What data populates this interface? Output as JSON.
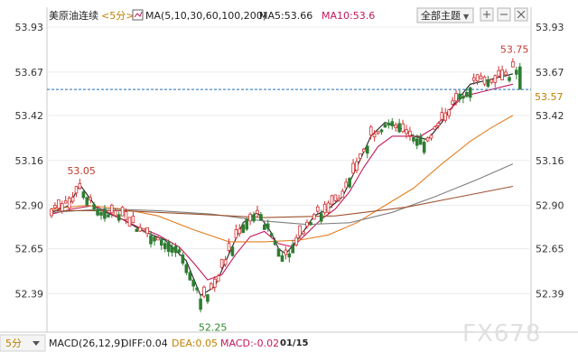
{
  "header": {
    "instrument": "美原油连续",
    "period": "<5分>",
    "ma_periods": "MA(5,10,30,60,100,200)",
    "ma5": "MA5:53.66",
    "ma10": "MA10:53.6",
    "menu_all": "全部主题",
    "menu_arrow": "▼"
  },
  "footer": {
    "period_select": "5分",
    "macd_params": "MACD(26,12,9)",
    "diff": "DIFF:0.04",
    "dea": "DEA:0.05",
    "macd": "MACD:-0.02",
    "date_label": "01/15",
    "watermark": "FX678"
  },
  "chart_data": {
    "type": "candlestick",
    "title": "美原油连续 <5分>",
    "y_ticks": [
      53.93,
      53.67,
      53.42,
      53.16,
      52.9,
      52.65,
      52.39
    ],
    "y_tick_labels": [
      "53.93",
      "53.67",
      "53.42",
      "53.16",
      "52.90",
      "52.65",
      "52.39"
    ],
    "ylim": [
      52.21,
      54.02
    ],
    "last_price": 53.57,
    "last_price_label": "53.57",
    "annotations": [
      {
        "text": "53.05",
        "x": 8,
        "value": 53.05,
        "color": "#c0392b"
      },
      {
        "text": "52.25",
        "x": 45,
        "value": 52.25,
        "color": "#2e8b2e"
      },
      {
        "text": "53.75",
        "x": 130,
        "value": 53.75,
        "color": "#c0392b"
      }
    ],
    "colors": {
      "up": "#d32f2f",
      "down": "#2e7d32",
      "last_price": "#1e6fb8"
    },
    "candles_count": 133,
    "ma_series": [
      {
        "name": "MA5",
        "color": "#222222",
        "points": [
          [
            0,
            52.86
          ],
          [
            5,
            52.9
          ],
          [
            8,
            53.02
          ],
          [
            13,
            52.88
          ],
          [
            20,
            52.82
          ],
          [
            26,
            52.75
          ],
          [
            32,
            52.7
          ],
          [
            38,
            52.58
          ],
          [
            42,
            52.38
          ],
          [
            46,
            52.43
          ],
          [
            50,
            52.62
          ],
          [
            54,
            52.8
          ],
          [
            58,
            52.86
          ],
          [
            62,
            52.74
          ],
          [
            64,
            52.65
          ],
          [
            66,
            52.62
          ],
          [
            70,
            52.72
          ],
          [
            74,
            52.84
          ],
          [
            78,
            52.88
          ],
          [
            82,
            52.95
          ],
          [
            86,
            53.12
          ],
          [
            90,
            53.3
          ],
          [
            94,
            53.38
          ],
          [
            98,
            53.35
          ],
          [
            102,
            53.3
          ],
          [
            106,
            53.28
          ],
          [
            110,
            53.38
          ],
          [
            114,
            53.5
          ],
          [
            118,
            53.6
          ],
          [
            124,
            53.63
          ],
          [
            130,
            53.66
          ]
        ]
      },
      {
        "name": "MA10",
        "color": "#c2185b",
        "points": [
          [
            0,
            52.85
          ],
          [
            6,
            52.88
          ],
          [
            12,
            52.9
          ],
          [
            18,
            52.84
          ],
          [
            24,
            52.78
          ],
          [
            30,
            52.73
          ],
          [
            36,
            52.66
          ],
          [
            40,
            52.57
          ],
          [
            44,
            52.47
          ],
          [
            48,
            52.5
          ],
          [
            52,
            52.62
          ],
          [
            56,
            52.72
          ],
          [
            60,
            52.75
          ],
          [
            64,
            52.68
          ],
          [
            68,
            52.66
          ],
          [
            72,
            52.74
          ],
          [
            76,
            52.82
          ],
          [
            80,
            52.88
          ],
          [
            84,
            52.98
          ],
          [
            88,
            53.12
          ],
          [
            92,
            53.24
          ],
          [
            96,
            53.3
          ],
          [
            100,
            53.3
          ],
          [
            104,
            53.3
          ],
          [
            108,
            53.35
          ],
          [
            112,
            53.45
          ],
          [
            116,
            53.53
          ],
          [
            122,
            53.56
          ],
          [
            130,
            53.6
          ]
        ]
      },
      {
        "name": "MA30",
        "color": "#e67e22",
        "points": [
          [
            0,
            52.88
          ],
          [
            10,
            52.9
          ],
          [
            20,
            52.88
          ],
          [
            30,
            52.84
          ],
          [
            40,
            52.76
          ],
          [
            50,
            52.69
          ],
          [
            60,
            52.69
          ],
          [
            70,
            52.7
          ],
          [
            78,
            52.73
          ],
          [
            86,
            52.8
          ],
          [
            94,
            52.9
          ],
          [
            102,
            53.0
          ],
          [
            110,
            53.14
          ],
          [
            118,
            53.27
          ],
          [
            124,
            53.35
          ],
          [
            130,
            53.42
          ]
        ]
      },
      {
        "name": "MA60",
        "color": "#7f7f7f",
        "points": [
          [
            0,
            52.86
          ],
          [
            15,
            52.88
          ],
          [
            30,
            52.87
          ],
          [
            45,
            52.85
          ],
          [
            60,
            52.81
          ],
          [
            72,
            52.79
          ],
          [
            84,
            52.8
          ],
          [
            96,
            52.86
          ],
          [
            108,
            52.95
          ],
          [
            120,
            53.05
          ],
          [
            130,
            53.14
          ]
        ]
      },
      {
        "name": "MA100",
        "color": "#a0522d",
        "points": [
          [
            0,
            52.87
          ],
          [
            20,
            52.87
          ],
          [
            40,
            52.85
          ],
          [
            60,
            52.83
          ],
          [
            80,
            52.84
          ],
          [
            100,
            52.89
          ],
          [
            115,
            52.95
          ],
          [
            130,
            53.01
          ]
        ]
      }
    ]
  }
}
